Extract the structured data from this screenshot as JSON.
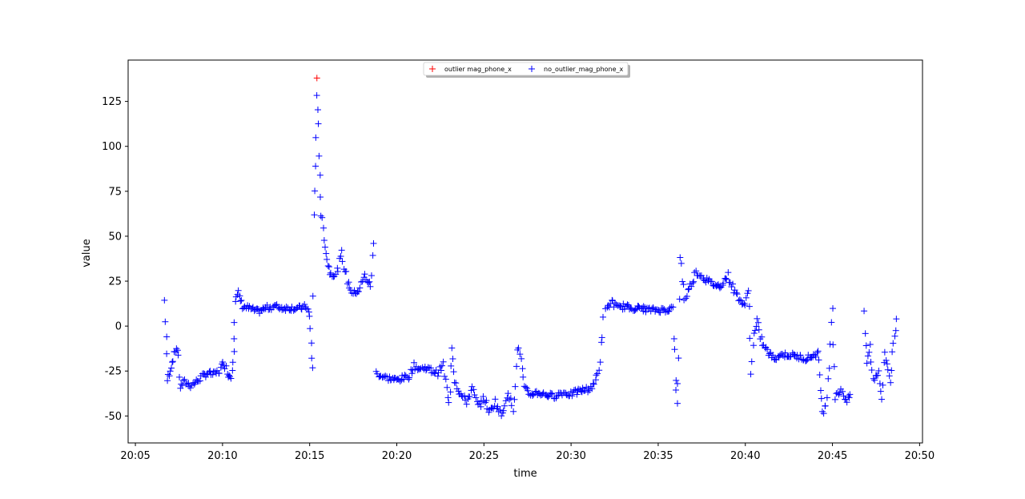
{
  "chart_data": {
    "type": "scatter",
    "title": "",
    "xlabel": "time",
    "ylabel": "value",
    "x_ticks": [
      "20:05",
      "20:10",
      "20:15",
      "20:20",
      "20:25",
      "20:30",
      "20:35",
      "20:40",
      "20:45",
      "20:50"
    ],
    "y_ticks": [
      -50,
      -25,
      0,
      25,
      50,
      75,
      100,
      125
    ],
    "xlim": [
      "20:04:35",
      "20:50:10"
    ],
    "ylim": [
      -65,
      148
    ],
    "marker": "+",
    "grid": false,
    "legend_position": "upper center",
    "series": [
      {
        "name": "outlier mag_phone_x",
        "color": "#ff0000",
        "points": [
          [
            "20:15:25",
            138
          ]
        ]
      },
      {
        "name": "no_outlier_mag_phone_x",
        "color": "#0000ff",
        "segments": [
          {
            "x": [
              [
                "20:06:40",
                14
              ],
              [
                "20:06:48",
                -6
              ],
              [
                "20:06:50",
                -30
              ],
              [
                "20:07:00",
                -24
              ],
              [
                "20:07:10",
                -18
              ],
              [
                "20:07:15",
                -14
              ],
              [
                "20:07:25",
                -12
              ],
              [
                "20:07:35",
                -34
              ],
              [
                "20:07:50",
                -31
              ],
              [
                "20:08:10",
                -33
              ],
              [
                "20:08:30",
                -31
              ],
              [
                "20:08:50",
                -28
              ],
              [
                "20:09:10",
                -26
              ],
              [
                "20:09:30",
                -27
              ],
              [
                "20:09:50",
                -25
              ],
              [
                "20:10:05",
                -20
              ],
              [
                "20:10:20",
                -27
              ],
              [
                "20:10:30",
                -28
              ],
              [
                "20:10:40",
                -12
              ],
              [
                "20:10:40",
                2
              ]
            ]
          },
          {
            "x": [
              [
                "20:10:45",
                14
              ],
              [
                "20:10:55",
                18
              ],
              [
                "20:11:10",
                11
              ],
              [
                "20:11:30",
                10
              ],
              [
                "20:12:00",
                8
              ],
              [
                "20:12:30",
                10
              ],
              [
                "20:13:00",
                11
              ],
              [
                "20:13:30",
                10
              ],
              [
                "20:14:00",
                10
              ],
              [
                "20:14:30",
                10
              ],
              [
                "20:14:50",
                11
              ],
              [
                "20:15:00",
                5
              ],
              [
                "20:15:05",
                -10
              ],
              [
                "20:15:10",
                -24
              ],
              [
                "20:15:15",
                60
              ],
              [
                "20:15:20",
                90
              ],
              [
                "20:15:25",
                126
              ],
              [
                "20:15:30",
                110
              ],
              [
                "20:15:35",
                85
              ],
              [
                "20:15:40",
                62
              ],
              [
                "20:15:50",
                50
              ],
              [
                "20:16:00",
                37
              ],
              [
                "20:16:10",
                30
              ],
              [
                "20:16:30",
                28
              ],
              [
                "20:16:50",
                40
              ],
              [
                "20:17:10",
                25
              ],
              [
                "20:17:30",
                18
              ],
              [
                "20:17:50",
                20
              ],
              [
                "20:18:10",
                28
              ],
              [
                "20:18:30",
                22
              ],
              [
                "20:18:40",
                46
              ]
            ]
          },
          {
            "x": [
              [
                "20:18:50",
                -26
              ],
              [
                "20:19:10",
                -28
              ],
              [
                "20:19:30",
                -29
              ],
              [
                "20:20:00",
                -30
              ],
              [
                "20:20:20",
                -29
              ],
              [
                "20:20:40",
                -28
              ],
              [
                "20:21:00",
                -22
              ],
              [
                "20:21:20",
                -24
              ],
              [
                "20:21:40",
                -23
              ],
              [
                "20:22:00",
                -25
              ],
              [
                "20:22:20",
                -26
              ],
              [
                "20:22:40",
                -22
              ],
              [
                "20:23:00",
                -45
              ],
              [
                "20:23:10",
                -10
              ],
              [
                "20:23:20",
                -30
              ],
              [
                "20:23:40",
                -38
              ],
              [
                "20:24:00",
                -42
              ],
              [
                "20:24:20",
                -35
              ],
              [
                "20:24:40",
                -45
              ],
              [
                "20:25:00",
                -40
              ],
              [
                "20:25:20",
                -48
              ],
              [
                "20:25:40",
                -42
              ],
              [
                "20:26:00",
                -50
              ],
              [
                "20:26:20",
                -38
              ],
              [
                "20:26:40",
                -44
              ],
              [
                "20:27:00",
                -10
              ],
              [
                "20:27:20",
                -35
              ],
              [
                "20:27:40",
                -38
              ],
              [
                "20:28:00",
                -37
              ],
              [
                "20:28:30",
                -38
              ],
              [
                "20:29:00",
                -39
              ],
              [
                "20:29:30",
                -37
              ],
              [
                "20:30:00",
                -38
              ],
              [
                "20:30:30",
                -36
              ],
              [
                "20:31:00",
                -35
              ],
              [
                "20:31:20",
                -33
              ],
              [
                "20:31:40",
                -20
              ],
              [
                "20:31:50",
                5
              ]
            ]
          },
          {
            "x": [
              [
                "20:32:00",
                8
              ],
              [
                "20:32:20",
                14
              ],
              [
                "20:32:40",
                10
              ],
              [
                "20:33:00",
                11
              ],
              [
                "20:33:30",
                10
              ],
              [
                "20:34:00",
                10
              ],
              [
                "20:34:30",
                9
              ],
              [
                "20:35:00",
                9
              ],
              [
                "20:35:30",
                9
              ],
              [
                "20:35:50",
                10
              ],
              [
                "20:36:00",
                -30
              ],
              [
                "20:36:05",
                -45
              ],
              [
                "20:36:10",
                -15
              ],
              [
                "20:36:15",
                40
              ],
              [
                "20:36:30",
                15
              ],
              [
                "20:36:50",
                22
              ],
              [
                "20:37:10",
                30
              ],
              [
                "20:37:30",
                28
              ],
              [
                "20:38:00",
                24
              ],
              [
                "20:38:30",
                22
              ],
              [
                "20:39:00",
                28
              ],
              [
                "20:39:20",
                20
              ],
              [
                "20:39:40",
                15
              ],
              [
                "20:40:00",
                10
              ],
              [
                "20:40:10",
                25
              ],
              [
                "20:40:20",
                -25
              ],
              [
                "20:40:30",
                -5
              ],
              [
                "20:40:40",
                2
              ],
              [
                "20:41:00",
                -10
              ],
              [
                "20:41:20",
                -15
              ],
              [
                "20:41:40",
                -18
              ],
              [
                "20:42:00",
                -16
              ],
              [
                "20:42:30",
                -16
              ],
              [
                "20:43:00",
                -17
              ],
              [
                "20:43:30",
                -18
              ],
              [
                "20:44:00",
                -16
              ],
              [
                "20:44:10",
                -15
              ],
              [
                "20:44:20",
                -35
              ],
              [
                "20:44:30",
                -50
              ],
              [
                "20:44:40",
                -38
              ],
              [
                "20:45:00",
                12
              ],
              [
                "20:45:10",
                -40
              ],
              [
                "20:45:30",
                -35
              ],
              [
                "20:45:50",
                -42
              ],
              [
                "20:46:00",
                -38
              ]
            ]
          },
          {
            "x": [
              [
                "20:46:50",
                5
              ],
              [
                "20:47:00",
                -20
              ],
              [
                "20:47:10",
                -12
              ],
              [
                "20:47:20",
                -30
              ],
              [
                "20:47:40",
                -25
              ],
              [
                "20:47:50",
                -40
              ],
              [
                "20:48:00",
                -15
              ],
              [
                "20:48:20",
                -30
              ],
              [
                "20:48:30",
                -10
              ],
              [
                "20:48:40",
                4
              ]
            ]
          }
        ]
      }
    ]
  }
}
